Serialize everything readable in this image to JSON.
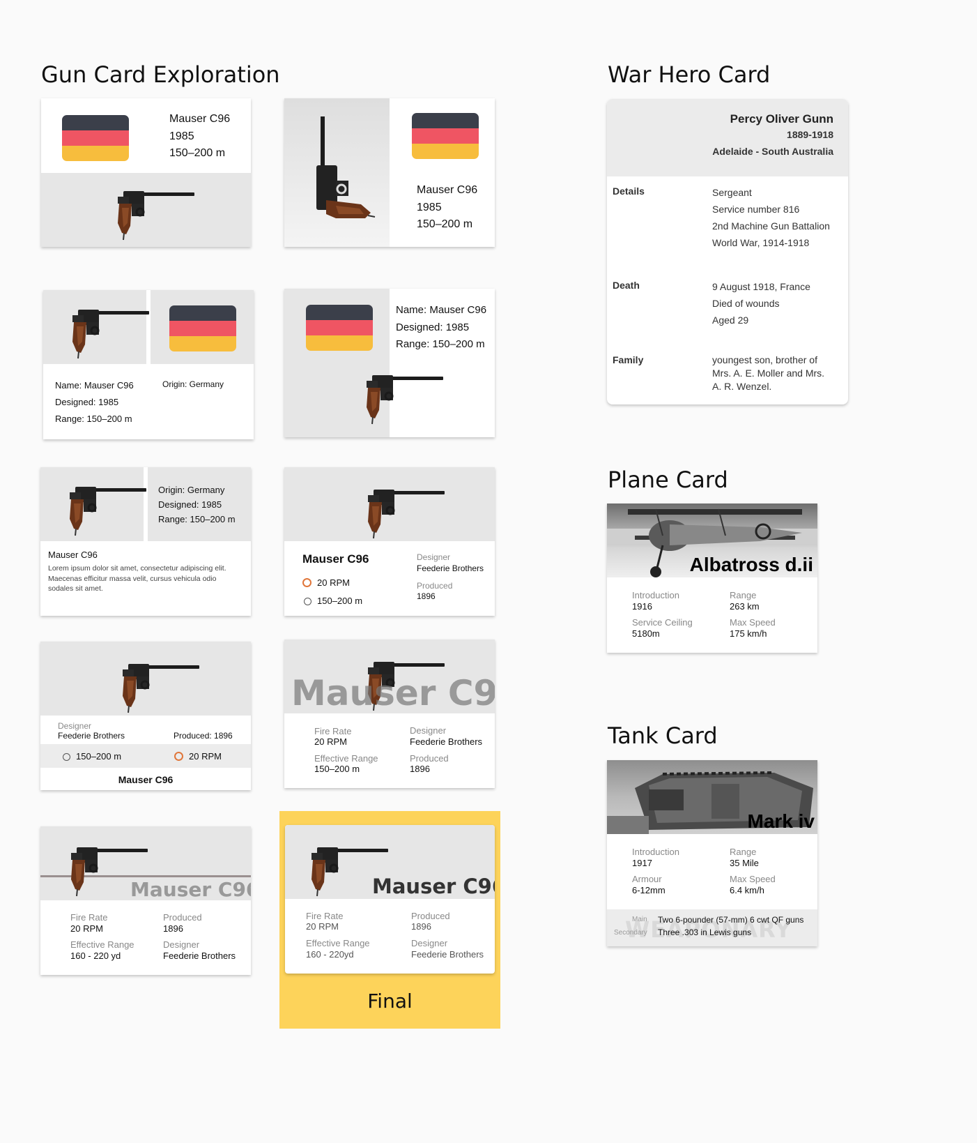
{
  "headings": {
    "gun": "Gun Card Exploration",
    "hero": "War Hero Card",
    "plane": "Plane Card",
    "tank": "Tank Card"
  },
  "gun": {
    "name": "Mauser C96",
    "year": "1985",
    "range": "150–200 m",
    "name_line": "Name: Mauser C96",
    "designed_line": "Designed: 1985",
    "range_line": "Range: 150–200 m",
    "origin_line": "Origin: Germany",
    "lorem": "Lorem ipsum dolor sit amet, consectetur adipiscing elit. Maecenas efficitur massa velit, cursus vehicula odio sodales sit amet.",
    "designer_label": "Designer",
    "designer": "Feederie Brothers",
    "produced_label": "Produced",
    "produced": "1896",
    "produced_inline": "Produced: 1896",
    "rpm": "20 RPM",
    "fire_rate_label": "Fire Rate",
    "effective_range_label": "Effective Range",
    "range_yd": "160 - 220 yd",
    "range_yd_final": "160 - 220yd",
    "final_label": "Final"
  },
  "hero": {
    "name": "Percy Oliver Gunn",
    "years": "1889-1918",
    "place": "Adelaide - South Australia",
    "details_label": "Details",
    "details": [
      "Sergeant",
      "Service number 816",
      "2nd Machine Gun Battalion",
      "World War, 1914-1918"
    ],
    "death_label": "Death",
    "death": [
      "9 August 1918, France",
      "Died of wounds",
      "Aged 29"
    ],
    "family_label": "Family",
    "family": [
      "youngest son, brother of",
      "Mrs. A. E. Moller and Mrs.",
      "A. R. Wenzel."
    ]
  },
  "plane": {
    "name": "Albatross d.ii",
    "introduction_label": "Introduction",
    "introduction": "1916",
    "range_label": "Range",
    "range": "263 km",
    "ceiling_label": "Service Ceiling",
    "ceiling": "5180m",
    "speed_label": "Max Speed",
    "speed": "175 km/h"
  },
  "tank": {
    "name": "Mark iv",
    "introduction_label": "Introduction",
    "introduction": "1917",
    "range_label": "Range",
    "range": "35 Mile",
    "armour_label": "Armour",
    "armour": "6-12mm",
    "speed_label": "Max Speed",
    "speed": "6.4 km/h",
    "weaponry_watermark": "WEAPONARY",
    "main_label": "Main",
    "main": "Two 6-pounder (57-mm) 6 cwt QF guns",
    "secondary_label": "Secondary",
    "secondary": "Three .303 in Lewis guns"
  },
  "colors": {
    "flag_black": "#3b3f4a",
    "flag_red": "#ef5563",
    "flag_gold": "#f7bd3d",
    "final_bg": "#fdd35a",
    "rpm_icon": "#e0763a"
  }
}
